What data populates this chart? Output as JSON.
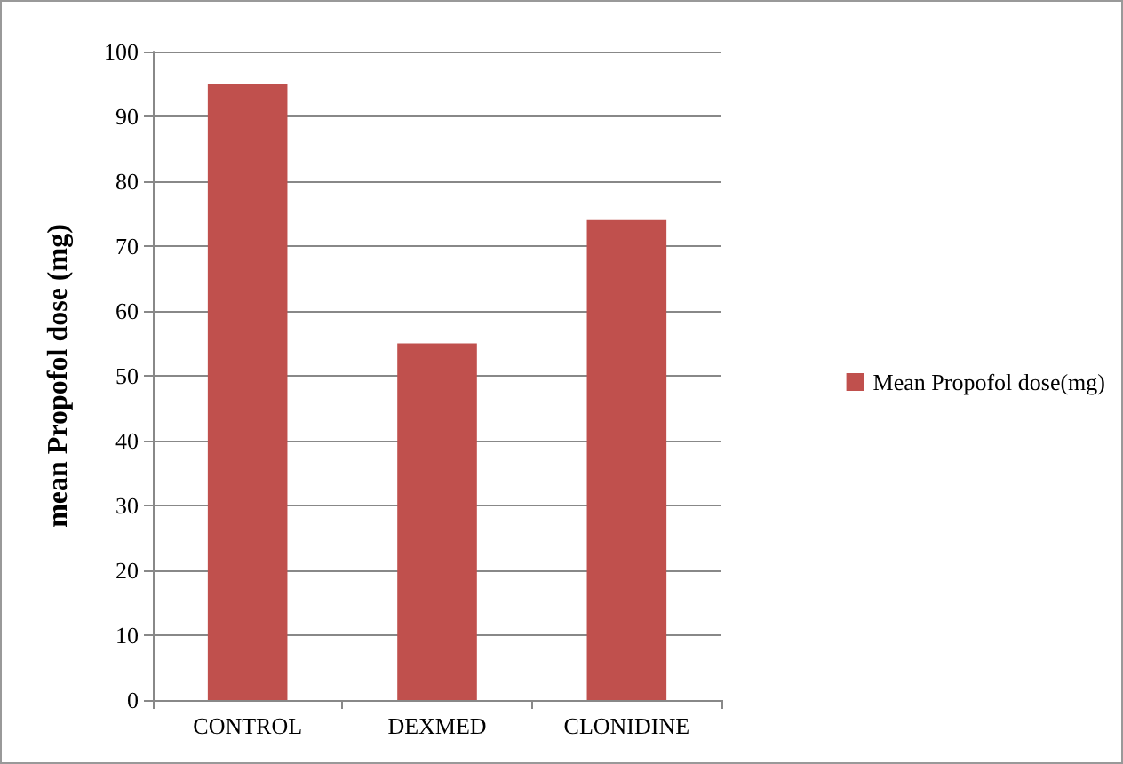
{
  "chart_data": {
    "type": "bar",
    "ylabel": "mean Propofol dose (mg)",
    "categories": [
      "CONTROL",
      "DEXMED",
      "CLONIDINE"
    ],
    "series": [
      {
        "name": "Mean Propofol dose(mg)",
        "color": "#c0504d",
        "values": [
          95,
          55,
          74
        ]
      }
    ],
    "ylim": [
      0,
      100
    ],
    "yticks": [
      0,
      10,
      20,
      30,
      40,
      50,
      60,
      70,
      80,
      90,
      100
    ],
    "grid": "y",
    "legend": "right"
  }
}
